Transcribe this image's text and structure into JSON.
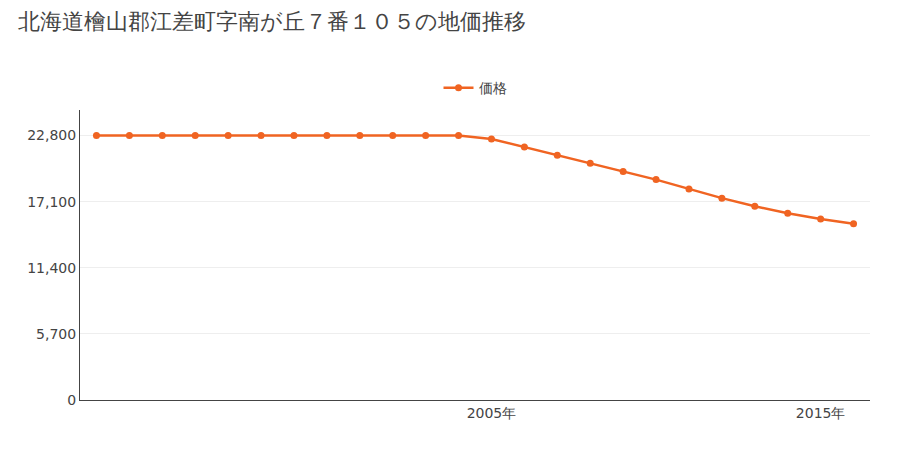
{
  "chart_data": {
    "type": "line",
    "title": "北海道檜山郡江差町字南が丘７番１０５の地価推移",
    "x": [
      1993,
      1994,
      1995,
      1996,
      1997,
      1998,
      1999,
      2000,
      2001,
      2002,
      2003,
      2004,
      2005,
      2006,
      2007,
      2008,
      2009,
      2010,
      2011,
      2012,
      2013,
      2014,
      2015,
      2016
    ],
    "series": [
      {
        "name": "価格",
        "color": "#f06422",
        "marker": "circle",
        "values": [
          22800,
          22800,
          22800,
          22800,
          22800,
          22800,
          22800,
          22800,
          22800,
          22800,
          22800,
          22800,
          22500,
          21800,
          21100,
          20400,
          19700,
          19000,
          18200,
          17400,
          16700,
          16100,
          15600,
          15200
        ]
      }
    ],
    "xlim": [
      1992.5,
      2016.5
    ],
    "xticks": [
      {
        "value": 2005,
        "label": "2005年"
      },
      {
        "value": 2015,
        "label": "2015年"
      }
    ],
    "ylim": [
      0,
      25000
    ],
    "yticks": [
      0,
      {
        "value": 5700,
        "label": "5,700"
      },
      {
        "value": 11400,
        "label": "11,400"
      },
      {
        "value": 17100,
        "label": "17,100"
      },
      {
        "value": 22800,
        "label": "22,800"
      }
    ],
    "grid": "y",
    "legend": "top"
  }
}
